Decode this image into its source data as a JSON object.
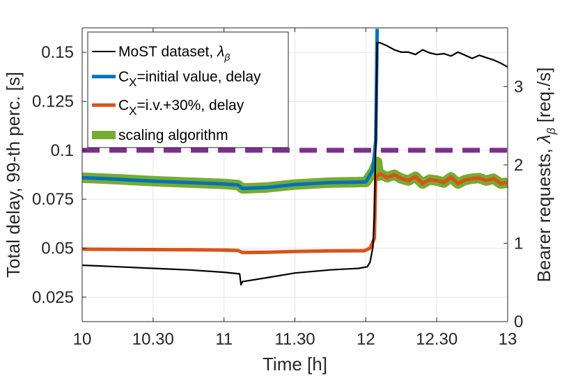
{
  "chart_data": {
    "type": "line",
    "xlabel": "Time [h]",
    "ylabel_left": "Total delay, 99-th perc. [s]",
    "ylabel_right": "Bearer requests, ",
    "ylabel_right_symbol": "λ",
    "ylabel_right_sub": "β",
    "ylabel_right_unit": " [req./s]",
    "xlim": [
      10,
      13
    ],
    "ylim_left": [
      0.0125,
      0.1625
    ],
    "ylim_right": [
      0,
      3.75
    ],
    "xticks": [
      10,
      10.5,
      11,
      11.5,
      12,
      12.5,
      13
    ],
    "xticklabels": [
      "10",
      "10.30",
      "11",
      "11.30",
      "12",
      "12.30",
      "13"
    ],
    "yticks_left": [
      0.025,
      0.05,
      0.075,
      0.1,
      0.125,
      0.15
    ],
    "yticklabels_left": [
      "0.025",
      "0.05",
      "0.075",
      "0.1",
      "0.125",
      "0.15"
    ],
    "yticks_right": [
      0,
      1,
      2,
      3
    ],
    "yticklabels_right": [
      "0",
      "1",
      "2",
      "3"
    ],
    "grid": true,
    "legend_position": "top-left",
    "threshold": {
      "value": 0.1,
      "color": "#7e2f8e",
      "style": "dashed"
    },
    "series": [
      {
        "name": "MoST dataset, ",
        "name_symbol": "λ",
        "name_sub": "β",
        "axis": "right",
        "color": "#000000",
        "x": [
          10,
          10.25,
          10.5,
          10.75,
          11,
          11.11,
          11.12,
          11.13,
          11.3,
          11.5,
          11.75,
          11.95,
          12.01,
          12.03,
          12.05,
          12.06,
          12.07,
          12.08,
          12.1,
          12.15,
          12.2,
          12.25,
          12.3,
          12.35,
          12.4,
          12.45,
          12.5,
          12.55,
          12.6,
          12.65,
          12.7,
          12.75,
          12.8,
          12.85,
          12.9,
          12.95,
          13
        ],
        "y": [
          0.72,
          0.7,
          0.68,
          0.66,
          0.63,
          0.61,
          0.47,
          0.51,
          0.56,
          0.62,
          0.66,
          0.68,
          0.7,
          0.76,
          0.95,
          1.35,
          2.3,
          3.56,
          3.56,
          3.52,
          3.47,
          3.44,
          3.44,
          3.41,
          3.47,
          3.43,
          3.41,
          3.42,
          3.39,
          3.44,
          3.4,
          3.36,
          3.4,
          3.37,
          3.34,
          3.3,
          3.25
        ]
      },
      {
        "name": "C",
        "name_sub": "X",
        "name_suffix": "=initial value, delay",
        "axis": "left",
        "color": "#0072bd",
        "x": [
          10,
          10.25,
          10.5,
          10.75,
          11,
          11.1,
          11.13,
          11.3,
          11.5,
          11.75,
          12,
          12.05,
          12.07,
          12.08
        ],
        "y": [
          0.086,
          0.0852,
          0.0842,
          0.0835,
          0.0828,
          0.0822,
          0.0805,
          0.081,
          0.0825,
          0.0835,
          0.0838,
          0.09,
          0.105,
          0.162
        ]
      },
      {
        "name": "C",
        "name_sub": "X",
        "name_suffix": "=i.v.+30%, delay",
        "axis": "left",
        "color": "#d95319",
        "x": [
          10,
          10.25,
          10.5,
          10.75,
          11,
          11.1,
          11.13,
          11.3,
          11.5,
          11.75,
          11.99,
          12.03,
          12.06,
          12.07,
          12.1,
          12.15,
          12.2,
          12.25,
          12.3,
          12.35,
          12.4,
          12.45,
          12.5,
          12.55,
          12.6,
          12.65,
          12.7,
          12.75,
          12.8,
          12.85,
          12.9,
          12.95,
          13
        ],
        "y": [
          0.0495,
          0.0494,
          0.0493,
          0.0492,
          0.049,
          0.0488,
          0.0478,
          0.0479,
          0.0483,
          0.0486,
          0.0487,
          0.05,
          0.055,
          0.086,
          0.088,
          0.086,
          0.0875,
          0.0855,
          0.0845,
          0.0865,
          0.083,
          0.085,
          0.0845,
          0.0835,
          0.0862,
          0.083,
          0.0848,
          0.0855,
          0.0858,
          0.0845,
          0.0855,
          0.083,
          0.0835
        ]
      },
      {
        "name": "scaling algorithm",
        "axis": "left",
        "color": "#77ac30",
        "x": [
          10,
          10.25,
          10.5,
          10.75,
          11,
          11.1,
          11.13,
          11.3,
          11.5,
          11.75,
          12,
          12.05,
          12.08,
          12.09,
          12.1,
          12.15,
          12.2,
          12.25,
          12.3,
          12.35,
          12.4,
          12.45,
          12.5,
          12.55,
          12.6,
          12.65,
          12.7,
          12.75,
          12.8,
          12.85,
          12.9,
          12.95,
          13
        ],
        "y": [
          0.086,
          0.0852,
          0.0842,
          0.0835,
          0.0828,
          0.0822,
          0.0805,
          0.081,
          0.0825,
          0.0835,
          0.0838,
          0.089,
          0.094,
          0.087,
          0.088,
          0.0862,
          0.0875,
          0.0855,
          0.0845,
          0.0865,
          0.083,
          0.085,
          0.0845,
          0.0835,
          0.0862,
          0.083,
          0.0848,
          0.0855,
          0.0858,
          0.0845,
          0.0855,
          0.083,
          0.0835
        ]
      }
    ]
  }
}
